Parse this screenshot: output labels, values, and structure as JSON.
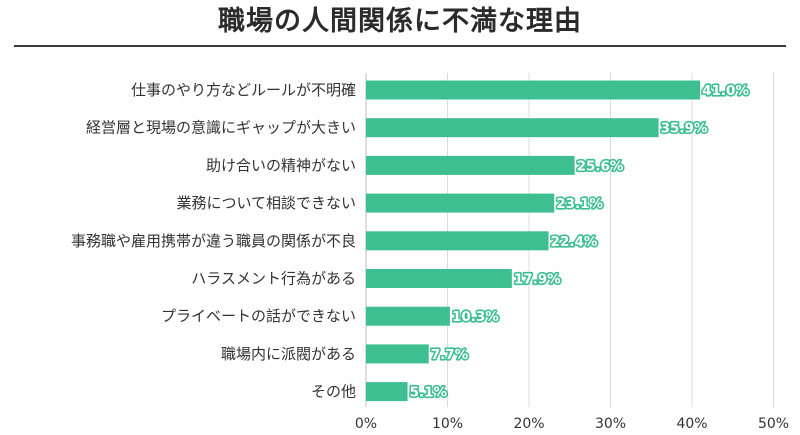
{
  "chart_data": {
    "type": "bar",
    "orientation": "horizontal",
    "title": "職場の人間関係に不満な理由",
    "categories": [
      "仕事のやり方などルールが不明確",
      "経営層と現場の意識にギャップが大きい",
      "助け合いの精神がない",
      "業務について相談できない",
      "事務職や雇用携帯が違う職員の関係が不良",
      "ハラスメント行為がある",
      "プライベートの話ができない",
      "職場内に派閥がある",
      "その他"
    ],
    "values": [
      41.0,
      35.9,
      25.6,
      23.1,
      22.4,
      17.9,
      10.3,
      7.7,
      5.1
    ],
    "value_labels": [
      "41.0%",
      "35.9%",
      "25.6%",
      "23.1%",
      "22.4%",
      "17.9%",
      "10.3%",
      "7.7%",
      "5.1%"
    ],
    "xlim": [
      0,
      50
    ],
    "x_ticks": [
      "0%",
      "10%",
      "20%",
      "30%",
      "40%",
      "50%"
    ],
    "grid": "vertical",
    "bar_color": "#3dbf92",
    "xlabel": "",
    "ylabel": ""
  }
}
